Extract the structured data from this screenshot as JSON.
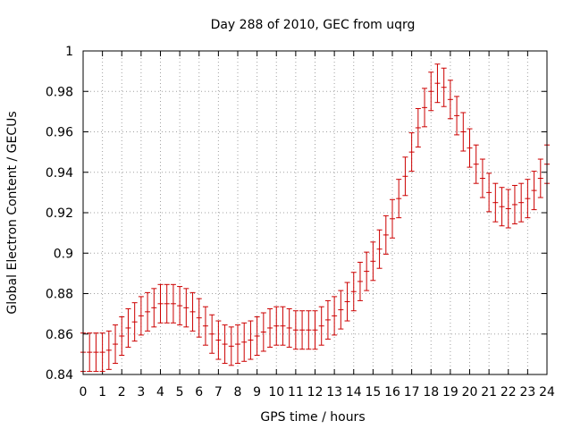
{
  "chart_data": {
    "type": "line",
    "title": "Day 288 of 2010, GEC from uqrg",
    "xlabel": "GPS time / hours",
    "ylabel": "Global Electron Content / GECUs",
    "xlim": [
      0,
      24
    ],
    "ylim": [
      0.84,
      1.0
    ],
    "xticks": [
      "0",
      "1",
      "2",
      "3",
      "4",
      "5",
      "6",
      "7",
      "8",
      "9",
      "10",
      "11",
      "12",
      "13",
      "14",
      "15",
      "16",
      "17",
      "18",
      "19",
      "20",
      "21",
      "22",
      "23",
      "24"
    ],
    "yticks": [
      "0.84",
      "0.86",
      "0.88",
      "0.9",
      "0.92",
      "0.94",
      "0.96",
      "0.98",
      "1"
    ],
    "grid": true,
    "error_bar": 0.0095,
    "series_color": "#cc0000",
    "x": [
      0,
      0.333,
      0.667,
      1,
      1.333,
      1.667,
      2,
      2.333,
      2.667,
      3,
      3.333,
      3.667,
      4,
      4.333,
      4.667,
      5,
      5.333,
      5.667,
      6,
      6.333,
      6.667,
      7,
      7.333,
      7.667,
      8,
      8.333,
      8.667,
      9,
      9.333,
      9.667,
      10,
      10.333,
      10.667,
      11,
      11.333,
      11.667,
      12,
      12.333,
      12.667,
      13,
      13.333,
      13.667,
      14,
      14.333,
      14.667,
      15,
      15.333,
      15.667,
      16,
      16.333,
      16.667,
      17,
      17.333,
      17.667,
      18,
      18.333,
      18.667,
      19,
      19.333,
      19.667,
      20,
      20.333,
      20.667,
      21,
      21.333,
      21.667,
      22,
      22.333,
      22.667,
      23,
      23.333,
      23.667,
      24
    ],
    "y": [
      0.851,
      0.851,
      0.851,
      0.851,
      0.852,
      0.855,
      0.859,
      0.863,
      0.866,
      0.869,
      0.871,
      0.873,
      0.875,
      0.875,
      0.875,
      0.874,
      0.873,
      0.871,
      0.868,
      0.864,
      0.86,
      0.857,
      0.855,
      0.854,
      0.855,
      0.856,
      0.857,
      0.859,
      0.861,
      0.863,
      0.864,
      0.864,
      0.863,
      0.862,
      0.862,
      0.862,
      0.862,
      0.864,
      0.867,
      0.869,
      0.872,
      0.876,
      0.881,
      0.886,
      0.891,
      0.896,
      0.902,
      0.909,
      0.917,
      0.927,
      0.938,
      0.95,
      0.962,
      0.972,
      0.98,
      0.984,
      0.982,
      0.976,
      0.968,
      0.96,
      0.952,
      0.944,
      0.937,
      0.93,
      0.925,
      0.923,
      0.922,
      0.924,
      0.925,
      0.927,
      0.931,
      0.937,
      0.944
    ]
  }
}
